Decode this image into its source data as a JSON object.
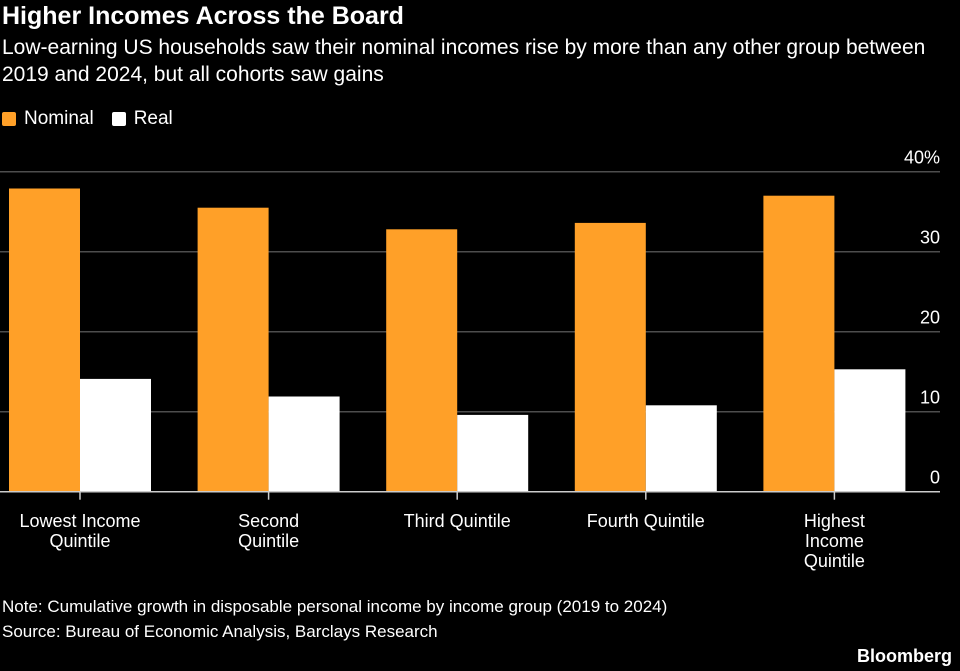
{
  "title": "Higher Incomes Across the Board",
  "subtitle": "Low-earning US households saw their nominal incomes rise by more than any other group between 2019 and 2024, but all cohorts saw gains",
  "note": "Note: Cumulative growth in disposable personal income by income group (2019 to 2024)",
  "source": "Source: Bureau of Economic Analysis, Barclays Research",
  "logo": "Bloomberg",
  "colors": {
    "nominal": "#FFA028",
    "real": "#FFFFFF",
    "background": "#000000",
    "grid": "#4d4d4d"
  },
  "chart_data": {
    "type": "bar",
    "title": "Higher Incomes Across the Board",
    "categories": [
      [
        "Lowest Income",
        "Quintile"
      ],
      [
        "Second",
        "Quintile"
      ],
      [
        "Third Quintile"
      ],
      [
        "Fourth Quintile"
      ],
      [
        "Highest",
        "Income",
        "Quintile"
      ]
    ],
    "series": [
      {
        "name": "Nominal",
        "values": [
          37.9,
          35.5,
          32.8,
          33.6,
          37.0
        ]
      },
      {
        "name": "Real",
        "values": [
          14.1,
          11.9,
          9.6,
          10.8,
          15.3
        ]
      }
    ],
    "ylim": [
      0,
      40
    ],
    "yticks": [
      0,
      10,
      20,
      30,
      40
    ],
    "ytick_labels": [
      "0",
      "10",
      "20",
      "30",
      "40%"
    ],
    "y_axis_side": "right",
    "grid": true,
    "legend_placement": "top-left"
  }
}
